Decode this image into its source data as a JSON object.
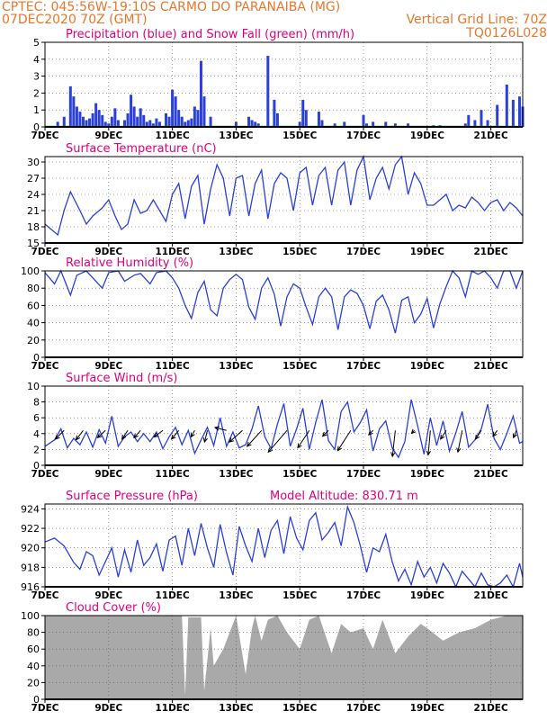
{
  "header": {
    "line1": "CPTEC:   045:56W-19:10S  CARMO DO PARANAIBA (MG)",
    "line2": "07DEC2020 70Z (GMT)",
    "grid_note": "Vertical Grid Line: 70Z",
    "code": "TQ0126L028"
  },
  "colors": {
    "header": "#e8772e",
    "title": "#e0007a",
    "line": "#2a3fdc",
    "precip": "#2a3fdc",
    "snow": "#22a022",
    "cloud": "#a9a9a9",
    "arrow": "#000000"
  },
  "x_labels": [
    "7DEC",
    "9DEC",
    "11DEC",
    "13DEC",
    "15DEC",
    "17DEC",
    "19DEC",
    "21DEC"
  ],
  "x_label_values": [
    0,
    2,
    4,
    6,
    8,
    10,
    12,
    14
  ],
  "chart_data": [
    {
      "type": "bar",
      "title": "Precipitation (blue) and Snow Fall (green) (mm/h)",
      "xlim": [
        0,
        15
      ],
      "ylim": [
        0,
        5
      ],
      "y_ticks": [
        0,
        1,
        2,
        3,
        4,
        5
      ],
      "series": [
        {
          "name": "Precipitation",
          "x": [
            0.4,
            0.6,
            0.8,
            0.9,
            1.0,
            1.1,
            1.2,
            1.3,
            1.4,
            1.5,
            1.6,
            1.7,
            1.8,
            1.9,
            2.0,
            2.1,
            2.2,
            2.3,
            2.5,
            2.6,
            2.7,
            2.8,
            2.9,
            3.0,
            3.1,
            3.2,
            3.3,
            3.4,
            3.5,
            3.6,
            3.8,
            3.9,
            4.0,
            4.1,
            4.2,
            4.3,
            4.4,
            4.5,
            4.6,
            4.7,
            4.8,
            4.9,
            5.0,
            5.2,
            6.0,
            6.4,
            6.5,
            6.6,
            6.7,
            7.0,
            7.2,
            7.3,
            8.0,
            8.1,
            8.2,
            8.6,
            8.7,
            9.1,
            9.4,
            10.0,
            10.1,
            10.3,
            10.7,
            11.0,
            11.4,
            12.2,
            12.4,
            13.2,
            13.3,
            13.5,
            13.7,
            13.9,
            14.2,
            14.5,
            14.7,
            14.9,
            15.0
          ],
          "values": [
            0.3,
            0.6,
            2.4,
            1.8,
            1.2,
            0.9,
            0.6,
            0.4,
            0.5,
            0.8,
            1.4,
            1.0,
            0.7,
            0.3,
            0.2,
            0.6,
            1.1,
            0.4,
            0.4,
            0.8,
            1.9,
            1.2,
            0.6,
            1.1,
            0.7,
            0.3,
            0.4,
            0.2,
            0.5,
            0.3,
            0.8,
            0.6,
            2.2,
            1.8,
            1.0,
            0.6,
            0.3,
            0.4,
            0.5,
            1.2,
            1.0,
            3.9,
            1.8,
            0.6,
            0.3,
            0.6,
            0.4,
            0.3,
            0.2,
            4.2,
            1.6,
            0.8,
            0.3,
            1.6,
            1.0,
            0.9,
            0.4,
            0.2,
            0.3,
            0.7,
            0.2,
            0.3,
            0.3,
            0.2,
            0.2,
            0.1,
            0.1,
            0.2,
            0.7,
            0.4,
            1.0,
            0.4,
            1.3,
            2.5,
            1.6,
            1.8,
            1.2
          ]
        },
        {
          "name": "Snow Fall",
          "x": [
            0,
            15
          ],
          "values": [
            0,
            0
          ]
        }
      ]
    },
    {
      "type": "line",
      "title": "Surface Temperature (nC)",
      "xlim": [
        0,
        15
      ],
      "ylim": [
        15,
        31
      ],
      "y_ticks": [
        15,
        18,
        21,
        24,
        27,
        30
      ],
      "series": [
        {
          "x": [
            0,
            0.4,
            0.6,
            0.8,
            1.1,
            1.3,
            1.5,
            1.8,
            2.0,
            2.2,
            2.4,
            2.6,
            2.8,
            3.0,
            3.2,
            3.4,
            3.6,
            3.8,
            4.0,
            4.2,
            4.4,
            4.6,
            4.8,
            5.0,
            5.2,
            5.4,
            5.6,
            5.8,
            6.0,
            6.2,
            6.4,
            6.6,
            6.8,
            7.0,
            7.2,
            7.4,
            7.6,
            7.8,
            8.0,
            8.2,
            8.4,
            8.6,
            8.8,
            9.0,
            9.2,
            9.4,
            9.6,
            9.8,
            10.0,
            10.2,
            10.4,
            10.6,
            10.8,
            11.0,
            11.2,
            11.4,
            11.6,
            11.8,
            12.0,
            12.2,
            12.4,
            12.6,
            12.8,
            13.0,
            13.2,
            13.4,
            13.6,
            13.8,
            14.0,
            14.2,
            14.4,
            14.6,
            14.8,
            15.0
          ],
          "values": [
            18.5,
            16.5,
            21,
            24.5,
            21,
            18.5,
            20,
            21.5,
            23,
            20,
            17.5,
            18.5,
            23,
            20.5,
            21,
            23,
            21,
            19,
            24,
            26,
            19.5,
            25.5,
            27.5,
            18.5,
            25,
            29.5,
            27,
            20,
            27,
            27.5,
            20,
            26,
            28.5,
            19.5,
            26,
            28,
            27,
            21,
            28,
            29,
            22,
            27.5,
            29,
            22,
            28.5,
            30,
            22,
            28.5,
            31,
            23,
            27,
            29,
            25,
            29.5,
            31,
            24,
            28,
            26,
            22,
            22,
            23,
            24,
            21,
            22,
            21.5,
            23.5,
            22.5,
            21,
            22.5,
            23,
            21,
            22.5,
            21.5,
            20
          ]
        }
      ]
    },
    {
      "type": "line",
      "title": "Relative Humidity (%)",
      "xlim": [
        0,
        15
      ],
      "ylim": [
        0,
        100
      ],
      "y_ticks": [
        0,
        20,
        40,
        60,
        80,
        100
      ],
      "series": [
        {
          "x": [
            0,
            0.3,
            0.5,
            0.8,
            1.0,
            1.3,
            1.5,
            1.8,
            2.0,
            2.3,
            2.5,
            2.8,
            3.0,
            3.3,
            3.5,
            3.8,
            4.0,
            4.2,
            4.4,
            4.6,
            4.8,
            5.0,
            5.2,
            5.4,
            5.6,
            5.8,
            6.0,
            6.2,
            6.4,
            6.6,
            6.8,
            7.0,
            7.2,
            7.4,
            7.6,
            7.8,
            8.0,
            8.2,
            8.4,
            8.6,
            8.8,
            9.0,
            9.2,
            9.4,
            9.6,
            9.8,
            10.0,
            10.2,
            10.4,
            10.6,
            10.8,
            11.0,
            11.2,
            11.4,
            11.6,
            11.8,
            12.0,
            12.2,
            12.4,
            12.6,
            12.8,
            13.0,
            13.2,
            13.4,
            13.6,
            13.8,
            14.0,
            14.2,
            14.4,
            14.6,
            14.8,
            15.0
          ],
          "values": [
            98,
            85,
            100,
            72,
            95,
            100,
            92,
            80,
            98,
            100,
            88,
            95,
            97,
            85,
            98,
            100,
            92,
            80,
            60,
            45,
            75,
            88,
            55,
            48,
            80,
            90,
            96,
            90,
            58,
            44,
            80,
            92,
            73,
            36,
            70,
            85,
            80,
            58,
            38,
            70,
            80,
            70,
            32,
            70,
            78,
            74,
            60,
            33,
            65,
            72,
            55,
            28,
            66,
            70,
            40,
            50,
            68,
            34,
            62,
            82,
            100,
            92,
            70,
            100,
            96,
            100,
            92,
            80,
            100,
            100,
            80,
            100
          ]
        }
      ]
    },
    {
      "type": "line",
      "title": "Surface Wind (m/s)",
      "xlim": [
        0,
        15
      ],
      "ylim": [
        0,
        10
      ],
      "y_ticks": [
        0,
        2,
        4,
        6,
        8,
        10
      ],
      "series": [
        {
          "x": [
            0,
            0.3,
            0.5,
            0.7,
            0.9,
            1.1,
            1.3,
            1.5,
            1.7,
            1.9,
            2.1,
            2.3,
            2.5,
            2.7,
            2.9,
            3.1,
            3.3,
            3.5,
            3.7,
            3.9,
            4.1,
            4.3,
            4.5,
            4.7,
            4.9,
            5.1,
            5.3,
            5.5,
            5.7,
            5.9,
            6.1,
            6.3,
            6.5,
            6.7,
            6.9,
            7.1,
            7.3,
            7.5,
            7.7,
            7.9,
            8.1,
            8.3,
            8.5,
            8.7,
            8.9,
            9.1,
            9.3,
            9.5,
            9.7,
            9.9,
            10.1,
            10.3,
            10.5,
            10.7,
            10.9,
            11.1,
            11.3,
            11.5,
            11.7,
            11.9,
            12.1,
            12.3,
            12.5,
            12.7,
            12.9,
            13.1,
            13.3,
            13.5,
            13.7,
            13.9,
            14.1,
            14.3,
            14.5,
            14.7,
            14.9,
            15.0
          ],
          "values": [
            2.4,
            3.2,
            4.6,
            2.2,
            3.4,
            2.6,
            4.2,
            2.3,
            4.5,
            2.8,
            6.2,
            2.4,
            3.6,
            4.2,
            3.0,
            4.0,
            3.0,
            4.2,
            2.1,
            3.6,
            4.8,
            2.6,
            4.4,
            1.5,
            3.2,
            4.8,
            2.5,
            6.0,
            2.4,
            4.2,
            2.2,
            2.6,
            4.6,
            7.5,
            3.6,
            2.1,
            5.2,
            7.8,
            2.4,
            4.6,
            7.2,
            2.0,
            5.4,
            8.3,
            3.1,
            2.0,
            6.8,
            8.0,
            4.2,
            5.4,
            7.0,
            1.8,
            4.6,
            5.6,
            2.2,
            1.0,
            3.0,
            8.3,
            5.0,
            1.4,
            6.0,
            2.5,
            5.6,
            1.8,
            4.1,
            6.8,
            2.3,
            3.2,
            4.6,
            7.7,
            3.4,
            2.0,
            4.0,
            6.2,
            2.8,
            3.0
          ]
        }
      ],
      "wind_arrows": [
        {
          "x": 0.6,
          "u": -1.2,
          "v": -1.2
        },
        {
          "x": 1.2,
          "u": -1.0,
          "v": -1.3
        },
        {
          "x": 1.9,
          "u": -1.1,
          "v": -1.0
        },
        {
          "x": 2.6,
          "u": -0.8,
          "v": -1.2
        },
        {
          "x": 3.0,
          "u": -0.9,
          "v": -1.0
        },
        {
          "x": 3.7,
          "u": -1.2,
          "v": -0.9
        },
        {
          "x": 4.2,
          "u": -1.0,
          "v": -1.2
        },
        {
          "x": 4.7,
          "u": -0.5,
          "v": -0.9
        },
        {
          "x": 5.1,
          "u": -0.4,
          "v": -1.6
        },
        {
          "x": 5.7,
          "u": -1.6,
          "v": 0.4
        },
        {
          "x": 6.2,
          "u": -1.8,
          "v": -1.6
        },
        {
          "x": 6.8,
          "u": -2.0,
          "v": -2.2
        },
        {
          "x": 7.6,
          "u": -2.6,
          "v": -3.0
        },
        {
          "x": 8.3,
          "u": -1.6,
          "v": -2.4
        },
        {
          "x": 8.9,
          "u": -0.8,
          "v": -0.8
        },
        {
          "x": 9.6,
          "u": -1.8,
          "v": -2.8
        },
        {
          "x": 10.3,
          "u": -0.6,
          "v": -0.6
        },
        {
          "x": 11.0,
          "u": -0.4,
          "v": -3.6
        },
        {
          "x": 11.6,
          "u": -0.4,
          "v": -0.4
        },
        {
          "x": 12.1,
          "u": -0.3,
          "v": -3.4
        },
        {
          "x": 12.6,
          "u": -0.8,
          "v": -1.2
        },
        {
          "x": 13.1,
          "u": -0.6,
          "v": -3.0
        },
        {
          "x": 13.7,
          "u": -0.8,
          "v": -1.2
        },
        {
          "x": 14.2,
          "u": -0.6,
          "v": -0.8
        },
        {
          "x": 14.8,
          "u": -0.4,
          "v": -1.0
        }
      ]
    },
    {
      "type": "line",
      "title": "Surface Pressure (hPa)",
      "annotation": "Model Altitude: 830.71 m",
      "xlim": [
        0,
        15
      ],
      "ylim": [
        916,
        924.5
      ],
      "y_ticks": [
        916,
        918,
        920,
        922,
        924
      ],
      "series": [
        {
          "x": [
            0,
            0.3,
            0.6,
            0.9,
            1.1,
            1.3,
            1.5,
            1.7,
            1.9,
            2.1,
            2.3,
            2.5,
            2.7,
            2.9,
            3.1,
            3.3,
            3.5,
            3.7,
            3.9,
            4.1,
            4.3,
            4.5,
            4.7,
            4.9,
            5.1,
            5.3,
            5.5,
            5.7,
            5.9,
            6.1,
            6.3,
            6.5,
            6.7,
            6.9,
            7.1,
            7.3,
            7.5,
            7.7,
            7.9,
            8.1,
            8.3,
            8.5,
            8.7,
            8.9,
            9.1,
            9.3,
            9.5,
            9.7,
            9.9,
            10.1,
            10.3,
            10.5,
            10.7,
            10.9,
            11.1,
            11.3,
            11.5,
            11.7,
            11.9,
            12.1,
            12.3,
            12.5,
            12.7,
            12.9,
            13.1,
            13.3,
            13.5,
            13.7,
            13.9,
            14.1,
            14.3,
            14.5,
            14.7,
            14.9,
            15.0
          ],
          "values": [
            920.6,
            921.0,
            920.2,
            918.5,
            917.8,
            919.6,
            919.2,
            917.2,
            918.6,
            920.0,
            917.0,
            919.8,
            917.5,
            920.8,
            918.2,
            919.0,
            920.4,
            917.6,
            920.8,
            921.2,
            918.2,
            922.0,
            919.2,
            922.5,
            920.0,
            918.0,
            922.4,
            919.5,
            917.2,
            922.2,
            920.2,
            918.6,
            922.0,
            919.0,
            921.8,
            922.8,
            919.4,
            923.2,
            921.0,
            919.8,
            922.8,
            923.6,
            920.8,
            921.6,
            922.6,
            920.2,
            924.2,
            922.6,
            920.2,
            917.5,
            920.0,
            919.6,
            921.4,
            918.6,
            916.6,
            917.8,
            916.2,
            918.6,
            917.0,
            918.0,
            916.4,
            918.4,
            917.4,
            916.0,
            917.6,
            916.8,
            915.6,
            917.4,
            916.2,
            915.8,
            916.4,
            917.2,
            915.6,
            918.4,
            917.0
          ]
        }
      ]
    },
    {
      "type": "area",
      "title": "Cloud Cover (%)",
      "xlim": [
        0,
        15
      ],
      "ylim": [
        0,
        100
      ],
      "y_ticks": [
        0,
        20,
        40,
        60,
        80,
        100
      ],
      "series": [
        {
          "x": [
            0,
            4.3,
            4.4,
            4.5,
            4.9,
            5.0,
            5.2,
            5.3,
            5.6,
            6.0,
            6.3,
            6.5,
            6.6,
            6.8,
            7.0,
            7.3,
            7.6,
            8.0,
            8.3,
            8.6,
            9.0,
            9.3,
            9.6,
            10.0,
            10.3,
            10.6,
            11.0,
            11.4,
            11.8,
            12.0,
            12.5,
            13.0,
            13.5,
            14.0,
            14.5,
            15.0
          ],
          "values": [
            100,
            100,
            5,
            98,
            98,
            10,
            85,
            40,
            60,
            100,
            30,
            85,
            100,
            70,
            95,
            100,
            80,
            60,
            95,
            100,
            55,
            90,
            80,
            85,
            60,
            95,
            55,
            75,
            90,
            85,
            70,
            80,
            85,
            95,
            100,
            100
          ]
        }
      ]
    }
  ]
}
